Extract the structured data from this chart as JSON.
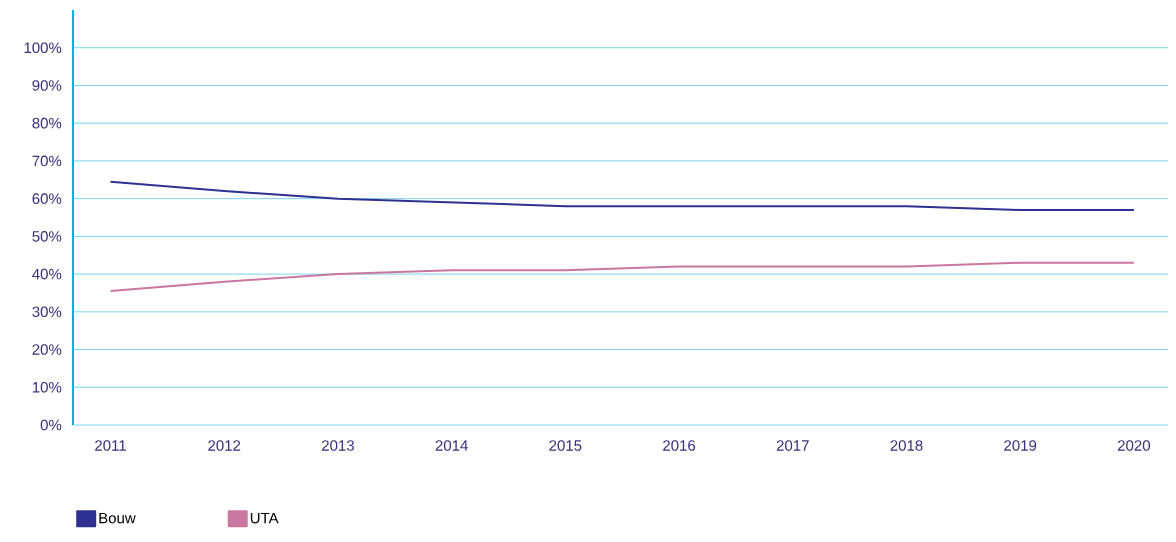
{
  "chart_data": {
    "type": "line",
    "categories": [
      "2011",
      "2012",
      "2013",
      "2014",
      "2015",
      "2016",
      "2017",
      "2018",
      "2019",
      "2020"
    ],
    "series": [
      {
        "name": "Bouw",
        "color": "#2e3192",
        "values": [
          64.5,
          62,
          60,
          59,
          58,
          58,
          58,
          58,
          57,
          57
        ]
      },
      {
        "name": "UTA",
        "color": "#c9779f",
        "values": [
          35.5,
          38,
          40,
          41,
          41,
          42,
          42,
          42,
          43,
          43
        ]
      }
    ],
    "ylim": [
      0,
      110
    ],
    "yticks": [
      {
        "value": 0,
        "label": "0%"
      },
      {
        "value": 10,
        "label": "10%"
      },
      {
        "value": 20,
        "label": "20%"
      },
      {
        "value": 30,
        "label": "30%"
      },
      {
        "value": 40,
        "label": "40%"
      },
      {
        "value": 50,
        "label": "50%"
      },
      {
        "value": 60,
        "label": "60%"
      },
      {
        "value": 70,
        "label": "70%"
      },
      {
        "value": 80,
        "label": "80%"
      },
      {
        "value": 90,
        "label": "90%"
      },
      {
        "value": 100,
        "label": "100%"
      }
    ],
    "grid": "y",
    "legend": "bottom left",
    "marker": "none",
    "line_style": "solid"
  }
}
